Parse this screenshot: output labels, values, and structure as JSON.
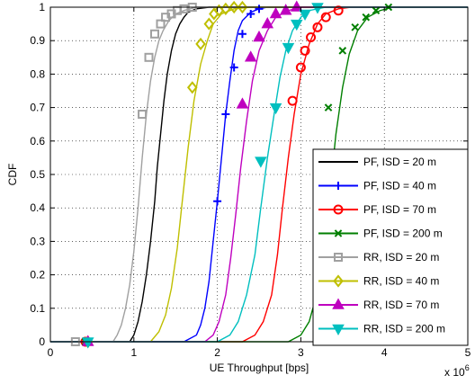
{
  "chart_data": {
    "type": "line",
    "xlabel": "UE Throughput [bps]",
    "ylabel": "CDF",
    "x_multiplier_label": "x 10",
    "x_multiplier_exponent": "6",
    "xlim": [
      0,
      5
    ],
    "ylim": [
      0,
      1
    ],
    "xticks": [
      "0",
      "1",
      "2",
      "3",
      "4",
      "5"
    ],
    "yticks": [
      "0",
      "0.1",
      "0.2",
      "0.3",
      "0.4",
      "0.5",
      "0.6",
      "0.7",
      "0.8",
      "0.9",
      "1"
    ],
    "grid": true,
    "legend_position": "lower-right",
    "series": [
      {
        "name": "PF, ISD = 20 m",
        "color": "#000000",
        "marker": "none",
        "x": [
          0,
          0.95,
          1.0,
          1.05,
          1.1,
          1.15,
          1.2,
          1.25,
          1.28,
          1.32,
          1.36,
          1.4,
          1.45,
          1.5,
          1.55,
          1.6,
          1.65,
          1.75,
          1.9,
          5
        ],
        "y": [
          0,
          0,
          0.02,
          0.06,
          0.12,
          0.2,
          0.3,
          0.42,
          0.52,
          0.62,
          0.72,
          0.8,
          0.87,
          0.92,
          0.95,
          0.97,
          0.985,
          0.995,
          1,
          1
        ]
      },
      {
        "name": "PF, ISD = 40 m",
        "color": "#0000ff",
        "marker": "plus",
        "x": [
          0,
          0.5,
          1.6,
          1.75,
          1.8,
          1.85,
          1.9,
          1.95,
          2.0,
          2.05,
          2.1,
          2.15,
          2.2,
          2.25,
          2.3,
          2.4,
          2.5,
          2.6,
          5
        ],
        "y": [
          0,
          0,
          0,
          0.02,
          0.05,
          0.1,
          0.18,
          0.3,
          0.42,
          0.55,
          0.68,
          0.78,
          0.87,
          0.93,
          0.96,
          0.985,
          0.995,
          1,
          1
        ],
        "marker_x": [
          0.42,
          2.0,
          2.1,
          2.2,
          2.3,
          2.4,
          2.5
        ],
        "marker_y": [
          0,
          0.42,
          0.68,
          0.82,
          0.92,
          0.98,
          0.995
        ]
      },
      {
        "name": "PF, ISD = 70 m",
        "color": "#ff0000",
        "marker": "circle",
        "x": [
          0,
          0.5,
          2.3,
          2.45,
          2.55,
          2.65,
          2.72,
          2.78,
          2.85,
          2.92,
          3.0,
          3.1,
          3.2,
          3.3,
          3.45,
          3.6,
          5
        ],
        "y": [
          0,
          0,
          0,
          0.02,
          0.06,
          0.14,
          0.26,
          0.4,
          0.55,
          0.68,
          0.8,
          0.89,
          0.95,
          0.98,
          0.995,
          1,
          1
        ],
        "marker_x": [
          0.42,
          2.9,
          3.0,
          3.05,
          3.12,
          3.2,
          3.3,
          3.45
        ],
        "marker_y": [
          0,
          0.72,
          0.82,
          0.87,
          0.91,
          0.94,
          0.97,
          0.99
        ]
      },
      {
        "name": "PF, ISD = 200 m",
        "color": "#007f00",
        "marker": "x",
        "x": [
          0,
          0.5,
          2.85,
          3.0,
          3.1,
          3.2,
          3.28,
          3.35,
          3.42,
          3.5,
          3.58,
          3.68,
          3.8,
          3.95,
          4.1,
          5
        ],
        "y": [
          0,
          0,
          0,
          0.02,
          0.06,
          0.15,
          0.28,
          0.45,
          0.62,
          0.76,
          0.86,
          0.93,
          0.97,
          0.99,
          1,
          1
        ],
        "marker_x": [
          0.42,
          3.33,
          3.5,
          3.65,
          3.78,
          3.9,
          4.05
        ],
        "marker_y": [
          0,
          0.7,
          0.87,
          0.94,
          0.97,
          0.99,
          1
        ]
      },
      {
        "name": "RR, ISD = 20 m",
        "color": "#a0a0a0",
        "marker": "square",
        "x": [
          0,
          0.75,
          0.8,
          0.85,
          0.9,
          0.95,
          1.0,
          1.05,
          1.1,
          1.15,
          1.2,
          1.25,
          1.3,
          1.35,
          1.42,
          1.5,
          1.6,
          1.75,
          5
        ],
        "y": [
          0,
          0,
          0.02,
          0.05,
          0.1,
          0.17,
          0.27,
          0.4,
          0.55,
          0.68,
          0.78,
          0.85,
          0.9,
          0.93,
          0.96,
          0.98,
          0.99,
          1,
          1
        ],
        "marker_x": [
          0.3,
          1.1,
          1.18,
          1.25,
          1.32,
          1.38,
          1.45,
          1.52,
          1.6,
          1.7
        ],
        "marker_y": [
          0,
          0.68,
          0.85,
          0.92,
          0.95,
          0.97,
          0.98,
          0.99,
          0.995,
          1
        ]
      },
      {
        "name": "RR, ISD = 40 m",
        "color": "#bfbf00",
        "marker": "diamond",
        "x": [
          0,
          0.5,
          1.2,
          1.3,
          1.38,
          1.45,
          1.52,
          1.58,
          1.65,
          1.72,
          1.8,
          1.88,
          1.95,
          2.05,
          2.2,
          2.4,
          5
        ],
        "y": [
          0,
          0,
          0,
          0.03,
          0.08,
          0.16,
          0.28,
          0.42,
          0.58,
          0.72,
          0.83,
          0.9,
          0.95,
          0.98,
          0.995,
          1,
          1
        ],
        "marker_x": [
          0.45,
          1.7,
          1.8,
          1.9,
          1.96,
          2.02,
          2.1,
          2.2,
          2.3
        ],
        "marker_y": [
          0,
          0.76,
          0.89,
          0.95,
          0.98,
          0.99,
          0.995,
          1,
          1
        ]
      },
      {
        "name": "RR, ISD = 70 m",
        "color": "#bf00bf",
        "marker": "triangle-up",
        "x": [
          0,
          0.5,
          1.85,
          1.95,
          2.02,
          2.1,
          2.16,
          2.22,
          2.28,
          2.35,
          2.42,
          2.5,
          2.6,
          2.7,
          2.85,
          3.0,
          5
        ],
        "y": [
          0,
          0,
          0,
          0.02,
          0.06,
          0.14,
          0.25,
          0.38,
          0.52,
          0.66,
          0.78,
          0.87,
          0.93,
          0.97,
          0.99,
          1,
          1
        ],
        "marker_x": [
          0.45,
          2.3,
          2.4,
          2.5,
          2.6,
          2.7,
          2.82,
          2.95
        ],
        "marker_y": [
          0,
          0.71,
          0.85,
          0.91,
          0.95,
          0.98,
          0.99,
          1
        ]
      },
      {
        "name": "RR, ISD = 200 m",
        "color": "#00bfbf",
        "marker": "triangle-down",
        "x": [
          0,
          0.5,
          2.0,
          2.15,
          2.25,
          2.35,
          2.45,
          2.52,
          2.6,
          2.68,
          2.75,
          2.82,
          2.9,
          3.0,
          3.1,
          3.3,
          5
        ],
        "y": [
          0,
          0,
          0,
          0.02,
          0.06,
          0.14,
          0.26,
          0.4,
          0.55,
          0.68,
          0.79,
          0.87,
          0.93,
          0.97,
          0.99,
          1,
          1
        ],
        "marker_x": [
          0.45,
          2.52,
          2.7,
          2.85,
          2.95,
          3.05,
          3.2
        ],
        "marker_y": [
          0,
          0.54,
          0.7,
          0.88,
          0.95,
          0.98,
          1
        ]
      }
    ]
  }
}
